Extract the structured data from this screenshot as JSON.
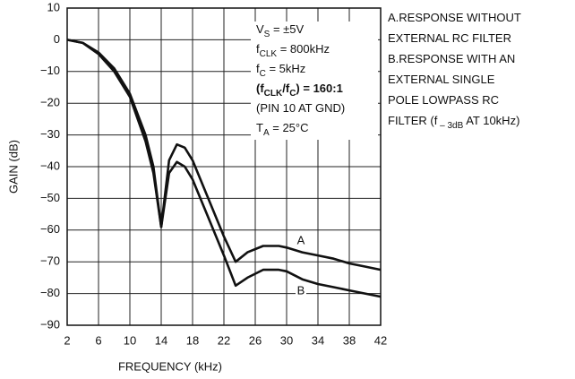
{
  "chart_data": {
    "type": "line",
    "xlabel": "FREQUENCY (kHz)",
    "ylabel": "GAIN (dB)",
    "x": [
      2,
      4,
      6,
      8,
      10,
      12,
      13,
      14,
      15,
      16,
      17,
      18,
      20,
      22,
      23.5,
      25,
      27,
      29,
      30,
      32,
      34,
      36,
      38,
      40,
      42
    ],
    "series": [
      {
        "name": "A",
        "color": "#111111",
        "values": [
          0,
          -1,
          -4,
          -9,
          -17,
          -30,
          -40,
          -59,
          -38,
          -33,
          -34,
          -38,
          -50,
          -62,
          -70,
          -67,
          -65,
          -65,
          -65.5,
          -67,
          -68,
          -69,
          -70.5,
          -71.5,
          -72.5
        ]
      },
      {
        "name": "B",
        "color": "#111111",
        "values": [
          0,
          -1,
          -4.5,
          -10,
          -18,
          -32,
          -42,
          -59,
          -42,
          -38.5,
          -40,
          -44,
          -56,
          -68,
          -77.5,
          -75,
          -72.5,
          -72.5,
          -73,
          -75.5,
          -77,
          -78,
          -79,
          -80,
          -81
        ]
      }
    ],
    "xlim": [
      2,
      42
    ],
    "ylim": [
      -90,
      10
    ],
    "xticks": [
      2,
      6,
      10,
      14,
      18,
      22,
      26,
      30,
      34,
      38,
      42
    ],
    "yticks": [
      10,
      0,
      {
        "value": -10,
        "label": "−10"
      },
      {
        "value": -20,
        "label": "−20"
      },
      {
        "value": -30,
        "label": "−30"
      },
      {
        "value": -40,
        "label": "−40"
      },
      {
        "value": -50,
        "label": "−50"
      },
      {
        "value": -60,
        "label": "−60"
      },
      {
        "value": -70,
        "label": "−70"
      },
      {
        "value": -80,
        "label": "−80"
      },
      {
        "value": -90,
        "label": "−90"
      }
    ],
    "grid": true,
    "conditions": [
      [
        {
          "t": "V"
        },
        {
          "t": "S",
          "sub": true
        },
        {
          "t": " = ±5V"
        }
      ],
      [
        {
          "t": "f"
        },
        {
          "t": "CLK",
          "sub": true
        },
        {
          "t": " = 800kHz"
        }
      ],
      [
        {
          "t": "f"
        },
        {
          "t": "C",
          "sub": true
        },
        {
          "t": " = 5kHz"
        }
      ],
      [
        {
          "t": "(f",
          "bold": true
        },
        {
          "t": "CLK",
          "sub": true,
          "bold": true
        },
        {
          "t": "/f",
          "bold": true
        },
        {
          "t": "C",
          "sub": true,
          "bold": true
        },
        {
          "t": ") = 160:1",
          "bold": true
        }
      ],
      [
        {
          "t": "(PIN 10 AT GND)"
        }
      ],
      [
        {
          "t": "T"
        },
        {
          "t": "A",
          "sub": true
        },
        {
          "t": " = 25°C"
        }
      ]
    ],
    "notes": [
      [
        {
          "t": "A.RESPONSE WITHOUT"
        }
      ],
      [
        {
          "t": "EXTERNAL RC FILTER"
        }
      ],
      [
        {
          "t": "B.RESPONSE WITH AN"
        }
      ],
      [
        {
          "t": "EXTERNAL SINGLE"
        }
      ],
      [
        {
          "t": "POLE LOWPASS RC"
        }
      ],
      [
        {
          "t": "FILTER (f"
        },
        {
          "t": " – 3dB",
          "sub": true
        },
        {
          "t": " AT 10kHz)"
        }
      ]
    ]
  }
}
